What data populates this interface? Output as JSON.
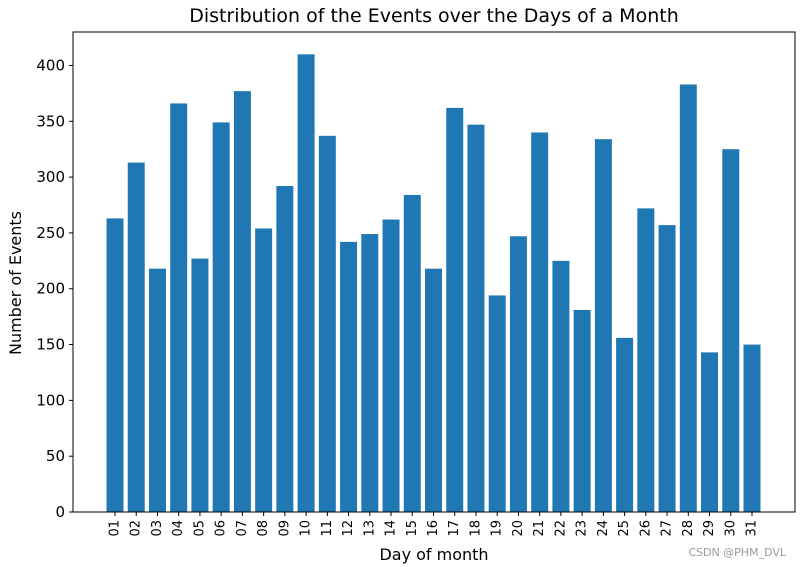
{
  "chart_data": {
    "type": "bar",
    "title": "Distribution of the Events over the Days of a Month",
    "xlabel": "Day of month",
    "ylabel": "Number of Events",
    "categories": [
      "01",
      "02",
      "03",
      "04",
      "05",
      "06",
      "07",
      "08",
      "09",
      "10",
      "11",
      "12",
      "13",
      "14",
      "15",
      "16",
      "17",
      "18",
      "19",
      "20",
      "21",
      "22",
      "23",
      "24",
      "25",
      "26",
      "27",
      "28",
      "29",
      "30",
      "31"
    ],
    "values": [
      263,
      313,
      218,
      366,
      227,
      349,
      377,
      254,
      292,
      410,
      337,
      242,
      249,
      262,
      284,
      218,
      362,
      347,
      194,
      247,
      340,
      225,
      181,
      334,
      156,
      272,
      257,
      383,
      143,
      325,
      150
    ],
    "yticks": [
      0,
      50,
      100,
      150,
      200,
      250,
      300,
      350,
      400
    ],
    "ylim": [
      0,
      430
    ],
    "bar_color": "#1f77b4",
    "grid": false,
    "xtick_rotation": "vertical"
  },
  "watermark": "CSDN @PHM_DVL"
}
